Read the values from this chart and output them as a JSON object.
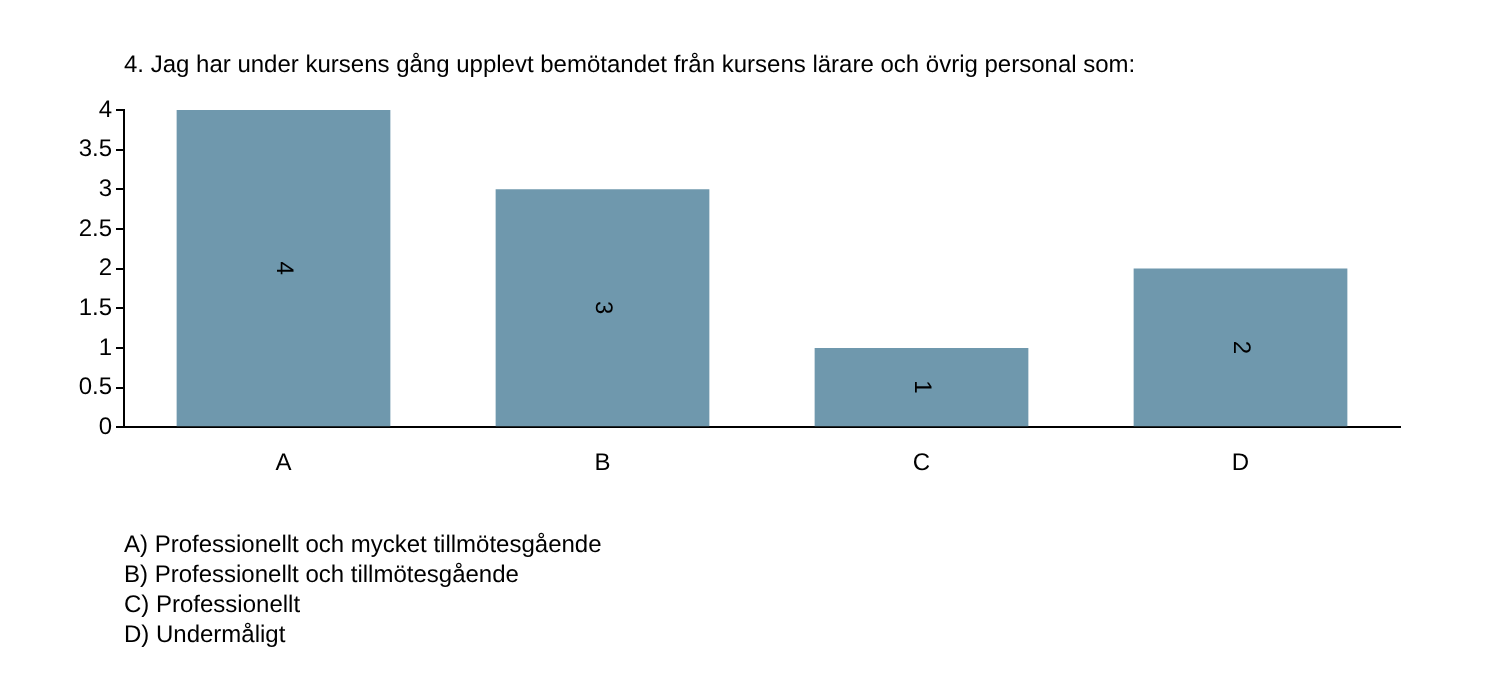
{
  "chart_data": {
    "type": "bar",
    "title": "4. Jag har under kursens gång upplevt bemötandet från kursens lärare och övrig personal som:",
    "categories": [
      "A",
      "B",
      "C",
      "D"
    ],
    "values": [
      4,
      3,
      1,
      2
    ],
    "color": "#6f98ad",
    "ylim": [
      0,
      4
    ],
    "yticks": [
      0,
      0.5,
      1,
      1.5,
      2,
      2.5,
      3,
      3.5,
      4
    ],
    "grid": false,
    "legend": false,
    "data_labels": true,
    "annotations": [
      "A) Professionellt och mycket tillmötesgående",
      "B) Professionellt och tillmötesgående",
      "C) Professionellt",
      "D) Undermåligt"
    ]
  }
}
